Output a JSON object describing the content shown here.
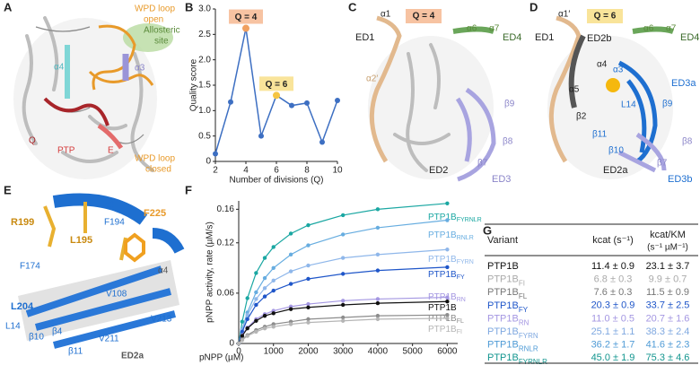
{
  "panels": {
    "letters": [
      "A",
      "B",
      "C",
      "D",
      "E",
      "F",
      "G"
    ],
    "A": {
      "labels": [
        "WPD loop",
        "open",
        "Allosteric",
        "site",
        "α4",
        "α3",
        "Q",
        "PTP",
        "E",
        "WPD loop",
        "closed"
      ]
    },
    "C": {
      "labels": [
        "α1",
        "Q = 4",
        "ED1",
        "α2′",
        "α6",
        "α7",
        "ED4",
        "β9",
        "β8",
        "β7",
        "ED2",
        "ED3"
      ]
    },
    "D": {
      "labels": [
        "α1′",
        "Q = 6",
        "ED1",
        "ED2b",
        "α6",
        "α7",
        "ED4",
        "α4",
        "α5",
        "α3",
        "L14",
        "ED3a",
        "β9",
        "β2",
        "β11",
        "β8",
        "β10",
        "β7",
        "ED2a",
        "ED3b"
      ]
    },
    "E": {
      "labels": [
        "R199",
        "L195",
        "α3",
        "F194",
        "F225",
        "F174",
        "α4",
        "L204",
        "V108",
        "L14",
        "β10",
        "β4",
        "V211",
        "V213",
        "β11",
        "ED2a"
      ]
    }
  },
  "chart_data": [
    {
      "type": "line",
      "ylabel": "Quality score",
      "xlabel": "Number of divisions (Q)",
      "x": [
        2,
        3,
        4,
        5,
        6,
        7,
        8,
        9,
        10
      ],
      "values": [
        0.15,
        1.17,
        2.62,
        0.5,
        1.3,
        1.1,
        1.15,
        0.38,
        1.2
      ],
      "color": "#3d6fc2",
      "xlim": [
        2,
        10
      ],
      "xticks": [
        2,
        4,
        6,
        8,
        10
      ],
      "ylim": [
        0,
        3
      ],
      "yticks": [
        0,
        0.5,
        {
          "value": 1,
          "label": "1.0"
        },
        1.5,
        {
          "value": 2,
          "label": "2.0"
        },
        2.5,
        {
          "value": 3,
          "label": "3.0"
        }
      ],
      "annotations": [
        {
          "text": "Q = 4",
          "x": 4,
          "color": "#f0a060",
          "box": "#f7c3a2"
        },
        {
          "text": "Q = 6",
          "x": 6,
          "color": "#f5c542",
          "box": "#f9e49a"
        }
      ]
    },
    {
      "type": "line",
      "ylabel": "pNPP activity, rate (µM/s)",
      "xlabel": "pNPP (µM)",
      "x": [
        0,
        100,
        250,
        500,
        750,
        1000,
        1500,
        2000,
        3000,
        4000,
        6000
      ],
      "xlim": [
        0,
        6300
      ],
      "xticks": [
        0,
        1000,
        2000,
        3000,
        4000,
        5000,
        6000
      ],
      "ylim": [
        0,
        0.17
      ],
      "yticks": [
        0,
        0.06,
        0.12,
        0.16
      ],
      "series": [
        {
          "name": "PTP1B",
          "subscript": "FYRNLR",
          "color": "#1aa7a2",
          "values": [
            0,
            0.026,
            0.054,
            0.084,
            0.102,
            0.115,
            0.131,
            0.141,
            0.153,
            0.16,
            0.167
          ]
        },
        {
          "name": "PTP1B",
          "subscript": "RNLR",
          "color": "#67ade0",
          "values": [
            0,
            0.017,
            0.037,
            0.061,
            0.078,
            0.09,
            0.106,
            0.117,
            0.13,
            0.138,
            0.147
          ]
        },
        {
          "name": "PTP1B",
          "subscript": "FYRN",
          "color": "#8fb7ea",
          "values": [
            0,
            0.016,
            0.034,
            0.053,
            0.066,
            0.075,
            0.086,
            0.093,
            0.102,
            0.106,
            0.112
          ]
        },
        {
          "name": "PTP1B",
          "subscript": "FY",
          "color": "#1f56c9",
          "values": [
            0,
            0.014,
            0.029,
            0.046,
            0.056,
            0.063,
            0.071,
            0.077,
            0.083,
            0.087,
            0.091
          ]
        },
        {
          "name": "PTP1B",
          "subscript": "RN",
          "color": "#a497e2",
          "values": [
            0,
            0.01,
            0.019,
            0.029,
            0.035,
            0.039,
            0.044,
            0.047,
            0.051,
            0.053,
            0.055
          ]
        },
        {
          "name": "PTP1B",
          "color": "#111111",
          "values": [
            0,
            0.009,
            0.018,
            0.027,
            0.033,
            0.036,
            0.041,
            0.043,
            0.046,
            0.048,
            0.05
          ]
        },
        {
          "name": "PTP1B",
          "subscript": "FL",
          "color": "#8c8c8c",
          "values": [
            0,
            0.005,
            0.01,
            0.016,
            0.02,
            0.023,
            0.026,
            0.029,
            0.031,
            0.033,
            0.034
          ]
        },
        {
          "name": "PTP1B",
          "subscript": "FI",
          "color": "#b5b5b5",
          "values": [
            0,
            0.004,
            0.009,
            0.014,
            0.018,
            0.02,
            0.023,
            0.025,
            0.027,
            0.029,
            0.03
          ]
        }
      ]
    }
  ],
  "table": {
    "header": {
      "variant": "Variant",
      "kcat": "kcat (s⁻¹)",
      "ratio": "kcat/KM",
      "ratio_unit": "(s⁻¹ µM⁻¹)"
    },
    "rows": [
      {
        "variant": "PTP1B",
        "kcat": "11.4 ± 0.9",
        "ratio": "23.1 ± 3.7",
        "color": "#111111"
      },
      {
        "variant": "PTP1B",
        "subscript": "FI",
        "kcat": "6.8 ± 0.3",
        "ratio": "9.9 ± 0.7",
        "color": "#aaaaaa"
      },
      {
        "variant": "PTP1B",
        "subscript": "FL",
        "kcat": "7.6 ± 0.3",
        "ratio": "11.5 ± 0.9",
        "color": "#777777"
      },
      {
        "variant": "PTP1B",
        "subscript": "FY",
        "kcat": "20.3 ± 0.9",
        "ratio": "33.7 ± 2.5",
        "color": "#1f56c9"
      },
      {
        "variant": "PTP1B",
        "subscript": "RN",
        "kcat": "11.0 ± 0.5",
        "ratio": "20.7 ± 1.6",
        "color": "#a497e2"
      },
      {
        "variant": "PTP1B",
        "subscript": "FYRN",
        "kcat": "25.1 ± 1.1",
        "ratio": "38.3 ± 2.4",
        "color": "#7fa8e0"
      },
      {
        "variant": "PTP1B",
        "subscript": "RNLR",
        "kcat": "36.2 ± 1.7",
        "ratio": "41.6 ± 2.3",
        "color": "#4f9bd6"
      },
      {
        "variant": "PTP1B",
        "subscript": "FYRNLR",
        "kcat": "45.0 ± 1.9",
        "ratio": "75.3 ± 4.6",
        "color": "#13968f"
      }
    ]
  }
}
